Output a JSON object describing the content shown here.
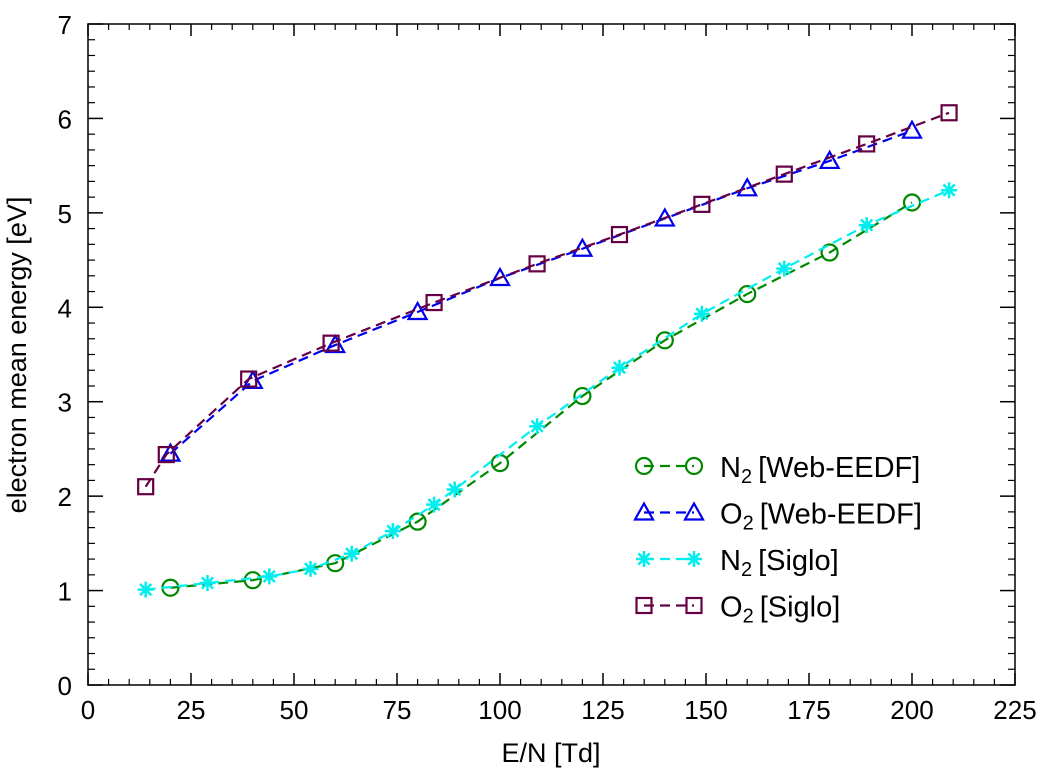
{
  "chart_data": {
    "type": "line",
    "title": "",
    "xlabel": "E/N [Td]",
    "ylabel": "electron mean energy [eV]",
    "xlim": [
      0,
      225
    ],
    "ylim": [
      0,
      7
    ],
    "xticks": [
      "0",
      "25",
      "50",
      "75",
      "100",
      "125",
      "150",
      "175",
      "200",
      "225"
    ],
    "yticks": [
      "0",
      "1",
      "2",
      "3",
      "4",
      "5",
      "6",
      "7"
    ],
    "legend_position": "bottom-right",
    "series": [
      {
        "name": "N2 [Web-EEDF]",
        "species": "N",
        "sub": "2",
        "source": "[Web-EEDF]",
        "color": "#008800",
        "marker": "circle",
        "x": [
          20,
          40,
          60,
          80,
          100,
          120,
          140,
          160,
          180,
          200
        ],
        "y": [
          1.03,
          1.11,
          1.29,
          1.73,
          2.35,
          3.06,
          3.65,
          4.14,
          4.58,
          5.11
        ]
      },
      {
        "name": "O2 [Web-EEDF]",
        "species": "O",
        "sub": "2",
        "source": "[Web-EEDF]",
        "color": "#0000ee",
        "marker": "triangle",
        "x": [
          20,
          40,
          60,
          80,
          100,
          120,
          140,
          160,
          180,
          200
        ],
        "y": [
          2.45,
          3.22,
          3.6,
          3.95,
          4.31,
          4.62,
          4.94,
          5.26,
          5.55,
          5.87
        ]
      },
      {
        "name": "N2 [Siglo]",
        "species": "N",
        "sub": "2",
        "source": "[Siglo]",
        "color": "#00eeee",
        "marker": "star",
        "x": [
          14,
          29,
          44,
          54,
          64,
          74,
          84,
          89,
          109,
          129,
          149,
          169,
          189,
          209
        ],
        "y": [
          1.01,
          1.08,
          1.15,
          1.23,
          1.39,
          1.63,
          1.91,
          2.07,
          2.74,
          3.36,
          3.93,
          4.41,
          4.87,
          5.24
        ]
      },
      {
        "name": "O2 [Siglo]",
        "species": "O",
        "sub": "2",
        "source": "[Siglo]",
        "color": "#660044",
        "marker": "square",
        "x": [
          14,
          19,
          39,
          59,
          84,
          109,
          129,
          149,
          169,
          189,
          209
        ],
        "y": [
          2.1,
          2.44,
          3.24,
          3.62,
          4.05,
          4.46,
          4.77,
          5.09,
          5.41,
          5.73,
          6.06
        ]
      }
    ]
  }
}
